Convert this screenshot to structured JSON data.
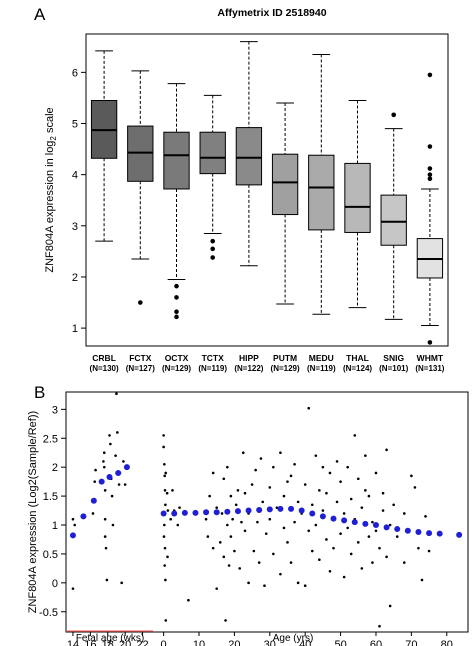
{
  "chart_data": [
    {
      "panel_label": "A",
      "type": "box",
      "title": "Affymetrix ID 2518940",
      "ylabel": "ZNF804A expression in log",
      "ylabel_sub": "2",
      "ylabel_tail": " scale",
      "ylim": [
        0.65,
        6.75
      ],
      "yticks": [
        1,
        2,
        3,
        4,
        5,
        6
      ],
      "categories": [
        "CRBL",
        "FCTX",
        "OCTX",
        "TCTX",
        "HIPP",
        "PUTM",
        "MEDU",
        "THAL",
        "SNIG",
        "WHMT"
      ],
      "counts": [
        "(N=130)",
        "(N=127)",
        "(N=129)",
        "(N=119)",
        "(N=122)",
        "(N=129)",
        "(N=119)",
        "(N=124)",
        "(N=101)",
        "(N=131)"
      ],
      "colors": [
        "#5a5a5a",
        "#6e6e6e",
        "#7a7a7a",
        "#808080",
        "#8a8a8a",
        "#a0a0a0",
        "#aaaaaa",
        "#b8b8b8",
        "#c6c6c6",
        "#e2e2e2"
      ],
      "boxes": [
        {
          "whislo": 2.7,
          "q1": 4.32,
          "median": 4.87,
          "q3": 5.45,
          "whishi": 6.42,
          "fliers": []
        },
        {
          "whislo": 2.35,
          "q1": 3.87,
          "median": 4.43,
          "q3": 4.95,
          "whishi": 6.03,
          "fliers": [
            1.5
          ]
        },
        {
          "whislo": 1.95,
          "q1": 3.72,
          "median": 4.38,
          "q3": 4.83,
          "whishi": 5.78,
          "fliers": [
            1.82,
            1.6,
            1.32,
            1.22
          ]
        },
        {
          "whislo": 2.85,
          "q1": 4.02,
          "median": 4.33,
          "q3": 4.83,
          "whishi": 5.55,
          "fliers": [
            2.7,
            2.55,
            2.38
          ]
        },
        {
          "whislo": 2.22,
          "q1": 3.8,
          "median": 4.33,
          "q3": 4.92,
          "whishi": 6.6,
          "fliers": []
        },
        {
          "whislo": 1.47,
          "q1": 3.22,
          "median": 3.85,
          "q3": 4.4,
          "whishi": 5.4,
          "fliers": []
        },
        {
          "whislo": 1.27,
          "q1": 2.92,
          "median": 3.75,
          "q3": 4.38,
          "whishi": 6.35,
          "fliers": []
        },
        {
          "whislo": 1.4,
          "q1": 2.87,
          "median": 3.37,
          "q3": 4.22,
          "whishi": 5.45,
          "fliers": []
        },
        {
          "whislo": 1.17,
          "q1": 2.62,
          "median": 3.08,
          "q3": 3.6,
          "whishi": 4.9,
          "fliers": [
            5.17
          ]
        },
        {
          "whislo": 1.05,
          "q1": 1.98,
          "median": 2.35,
          "q3": 2.75,
          "whishi": 3.72,
          "fliers": [
            5.95,
            4.55,
            4.12,
            4.0,
            3.92,
            0.72
          ]
        }
      ]
    },
    {
      "panel_label": "B",
      "type": "scatter",
      "ylabel": "ZNF804A expression (Log2(Sample/Ref))",
      "ylim": [
        -0.85,
        3.3
      ],
      "yticks": [
        -0.5,
        0,
        0.5,
        1,
        1.5,
        2,
        2.5,
        3
      ],
      "fetal_xlabel": "Fetal age (wks)",
      "fetal_xlim": [
        13.2,
        23.2
      ],
      "fetal_xticks": [
        14,
        16,
        18,
        20,
        22
      ],
      "age_xlabel": "Age (yrs)",
      "age_xlim": [
        -3,
        86
      ],
      "age_xticks": [
        0,
        10,
        20,
        30,
        40,
        50,
        60,
        70,
        80
      ],
      "trend_color": "#1f1fd6",
      "point_color": "#000000",
      "fetal_trend": [
        [
          14,
          0.82
        ],
        [
          15.2,
          1.15
        ],
        [
          16.4,
          1.42
        ],
        [
          17.3,
          1.75
        ],
        [
          18.2,
          1.83
        ],
        [
          19.2,
          1.9
        ],
        [
          20.2,
          2.0
        ]
      ],
      "fetal_points": [
        [
          14,
          -0.1
        ],
        [
          14,
          1.1
        ],
        [
          14.2,
          1.0
        ],
        [
          16.3,
          1.2
        ],
        [
          16.4,
          1.4
        ],
        [
          16.5,
          1.75
        ],
        [
          16.6,
          1.95
        ],
        [
          17.5,
          2.1
        ],
        [
          17.6,
          2.25
        ],
        [
          17.6,
          2.0
        ],
        [
          17.7,
          1.6
        ],
        [
          17.7,
          1.1
        ],
        [
          17.7,
          0.8
        ],
        [
          17.8,
          0.6
        ],
        [
          17.9,
          0.05
        ],
        [
          18.2,
          2.55
        ],
        [
          18.3,
          2.4
        ],
        [
          18.4,
          1.8
        ],
        [
          18.5,
          1.5
        ],
        [
          18.6,
          1.0
        ],
        [
          18.9,
          2.2
        ],
        [
          19.0,
          3.27
        ],
        [
          19.1,
          2.6
        ],
        [
          19.3,
          1.7
        ],
        [
          19.4,
          1.9
        ],
        [
          19.6,
          0.0
        ],
        [
          19.8,
          2.1
        ],
        [
          20.0,
          1.7
        ]
      ],
      "age_trend": [
        [
          0,
          1.2
        ],
        [
          3,
          1.2
        ],
        [
          6,
          1.21
        ],
        [
          9,
          1.21
        ],
        [
          12,
          1.22
        ],
        [
          15,
          1.22
        ],
        [
          18,
          1.23
        ],
        [
          21,
          1.24
        ],
        [
          24,
          1.25
        ],
        [
          27,
          1.26
        ],
        [
          30,
          1.27
        ],
        [
          33,
          1.28
        ],
        [
          36,
          1.28
        ],
        [
          39,
          1.25
        ],
        [
          42,
          1.2
        ],
        [
          45,
          1.15
        ],
        [
          48,
          1.11
        ],
        [
          51,
          1.08
        ],
        [
          54,
          1.05
        ],
        [
          57,
          1.02
        ],
        [
          60,
          1.0
        ],
        [
          63,
          0.96
        ],
        [
          66,
          0.93
        ],
        [
          69,
          0.9
        ],
        [
          72,
          0.88
        ],
        [
          75,
          0.86
        ],
        [
          78,
          0.85
        ],
        [
          83.5,
          0.83
        ]
      ],
      "age_points": [
        [
          0,
          2.55
        ],
        [
          0,
          2.35
        ],
        [
          0.2,
          2.05
        ],
        [
          0.3,
          1.85
        ],
        [
          0.4,
          1.6
        ],
        [
          0.5,
          1.35
        ],
        [
          0.2,
          1.0
        ],
        [
          0.1,
          0.8
        ],
        [
          0.4,
          0.6
        ],
        [
          0.3,
          0.3
        ],
        [
          0.5,
          0.05
        ],
        [
          0.6,
          -0.65
        ],
        [
          0.6,
          1.9
        ],
        [
          1,
          1.55
        ],
        [
          1.2,
          1.25
        ],
        [
          1.1,
          0.45
        ],
        [
          2,
          1.1
        ],
        [
          2.5,
          1.6
        ],
        [
          3,
          1.25
        ],
        [
          4,
          1.0
        ],
        [
          4.5,
          1.3
        ],
        [
          7,
          -0.3
        ],
        [
          12,
          1.1
        ],
        [
          12.5,
          0.8
        ],
        [
          13,
          1.5
        ],
        [
          14,
          1.9
        ],
        [
          14,
          0.6
        ],
        [
          15,
          1.3
        ],
        [
          15,
          -0.1
        ],
        [
          16,
          0.7
        ],
        [
          16.5,
          1.2
        ],
        [
          17,
          1.8
        ],
        [
          17,
          0.45
        ],
        [
          17.5,
          -0.65
        ],
        [
          18,
          1.0
        ],
        [
          18,
          2.0
        ],
        [
          18.5,
          0.3
        ],
        [
          19,
          0.8
        ],
        [
          19,
          1.5
        ],
        [
          19.5,
          1.1
        ],
        [
          20,
          0.55
        ],
        [
          20.5,
          1.35
        ],
        [
          21,
          1.6
        ],
        [
          21.5,
          0.25
        ],
        [
          22,
          1.05
        ],
        [
          22.5,
          2.25
        ],
        [
          23,
          0.9
        ],
        [
          23,
          1.55
        ],
        [
          24,
          1.2
        ],
        [
          24,
          0.0
        ],
        [
          25,
          1.7
        ],
        [
          25.5,
          0.55
        ],
        [
          26,
          1.95
        ],
        [
          26.5,
          1.05
        ],
        [
          27,
          0.35
        ],
        [
          27.5,
          2.15
        ],
        [
          28,
          1.4
        ],
        [
          28.5,
          -0.05
        ],
        [
          29,
          0.85
        ],
        [
          30,
          1.65
        ],
        [
          30,
          1.1
        ],
        [
          31,
          2.0
        ],
        [
          31,
          0.5
        ],
        [
          32,
          1.3
        ],
        [
          33,
          2.25
        ],
        [
          33,
          0.15
        ],
        [
          34,
          1.5
        ],
        [
          34,
          0.95
        ],
        [
          35,
          1.75
        ],
        [
          35,
          0.7
        ],
        [
          36,
          0.35
        ],
        [
          36,
          1.85
        ],
        [
          37,
          1.05
        ],
        [
          37,
          2.05
        ],
        [
          38,
          1.4
        ],
        [
          38,
          0.0
        ],
        [
          39,
          1.2
        ],
        [
          40,
          -0.05
        ],
        [
          40,
          1.7
        ],
        [
          41,
          0.9
        ],
        [
          41,
          3.02
        ],
        [
          42,
          1.35
        ],
        [
          42,
          0.55
        ],
        [
          43,
          2.2
        ],
        [
          43,
          1.0
        ],
        [
          44,
          0.4
        ],
        [
          44,
          1.6
        ],
        [
          45,
          1.25
        ],
        [
          45,
          2.0
        ],
        [
          46,
          0.75
        ],
        [
          46,
          1.55
        ],
        [
          47,
          0.2
        ],
        [
          47,
          1.9
        ],
        [
          48,
          1.1
        ],
        [
          48,
          0.6
        ],
        [
          49,
          1.4
        ],
        [
          49,
          2.1
        ],
        [
          50,
          0.85
        ],
        [
          50,
          1.75
        ],
        [
          51,
          0.1
        ],
        [
          51,
          1.2
        ],
        [
          52,
          2.0
        ],
        [
          52,
          0.95
        ],
        [
          53,
          1.45
        ],
        [
          53,
          0.5
        ],
        [
          54,
          2.55
        ],
        [
          54,
          1.1
        ],
        [
          55,
          0.7
        ],
        [
          55,
          1.8
        ],
        [
          56,
          1.3
        ],
        [
          56,
          0.25
        ],
        [
          57,
          1.6
        ],
        [
          57,
          2.2
        ],
        [
          58,
          0.8
        ],
        [
          58,
          1.5
        ],
        [
          59,
          1.05
        ],
        [
          59,
          0.35
        ],
        [
          60,
          1.9
        ],
        [
          60,
          0.9
        ],
        [
          61,
          0.6
        ],
        [
          61,
          -0.75
        ],
        [
          62,
          1.25
        ],
        [
          62,
          1.55
        ],
        [
          63,
          0.45
        ],
        [
          63,
          2.3
        ],
        [
          64,
          -0.4
        ],
        [
          64,
          1.0
        ],
        [
          65,
          1.35
        ],
        [
          66,
          0.8
        ],
        [
          68,
          0.35
        ],
        [
          68,
          1.2
        ],
        [
          70,
          1.85
        ],
        [
          71,
          1.65
        ],
        [
          72,
          0.6
        ],
        [
          73,
          0.05
        ],
        [
          74,
          1.15
        ],
        [
          75,
          0.55
        ]
      ]
    }
  ]
}
